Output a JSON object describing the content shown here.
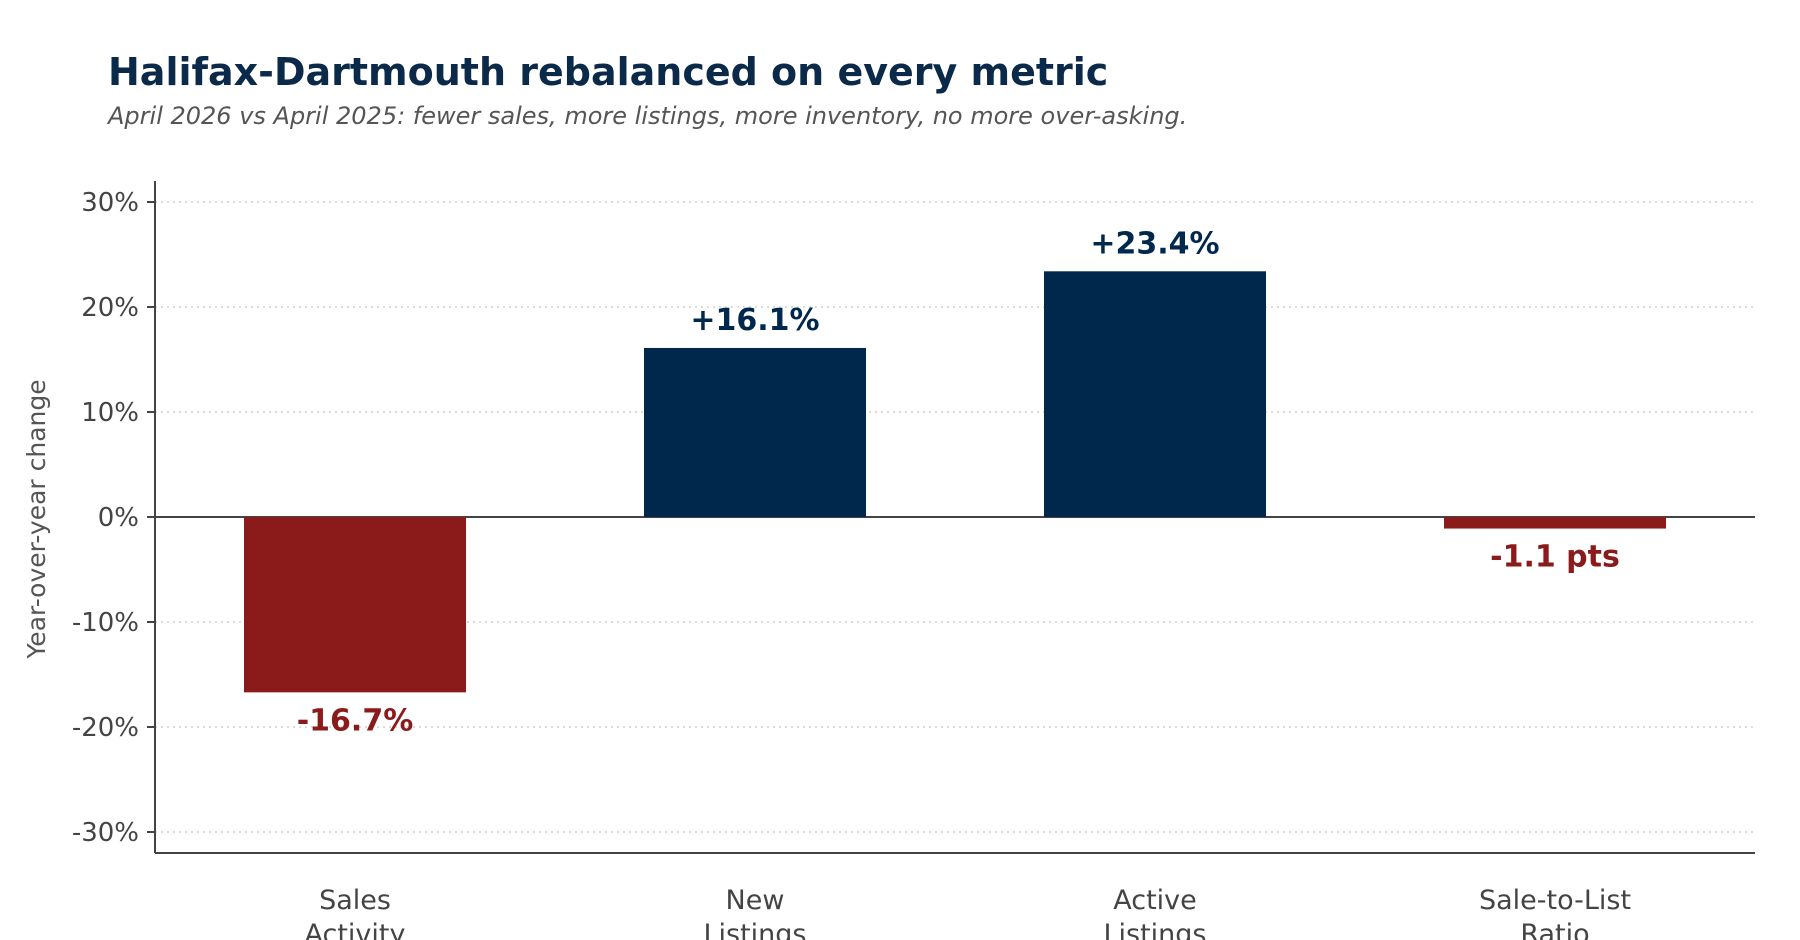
{
  "chart_data": {
    "type": "bar",
    "title": "Halifax-Dartmouth rebalanced on every metric",
    "subtitle": "April 2026 vs April 2025: fewer sales, more listings, more inventory, no more over-asking.",
    "ylabel": "Year-over-year change",
    "xlabel": "",
    "categories": [
      [
        "Sales",
        "Activity"
      ],
      [
        "New",
        "Listings"
      ],
      [
        "Active",
        "Listings"
      ],
      [
        "Sale-to-List",
        "Ratio"
      ]
    ],
    "values": [
      -16.7,
      16.1,
      23.4,
      -1.1
    ],
    "value_labels": [
      "-16.7%",
      "+16.1%",
      "+23.4%",
      "-1.1 pts"
    ],
    "ylim": [
      -32,
      32
    ],
    "yticks": [
      30,
      20,
      10,
      0,
      -10,
      -20,
      -30
    ],
    "ytick_labels": [
      "30%",
      "20%",
      "10%",
      "0%",
      "-10%",
      "-20%",
      "-30%"
    ],
    "grid": true,
    "legend": "none",
    "colors": {
      "positive": "#00274c",
      "negative": "#8b1a1a",
      "title": "#0b2a4a",
      "axis": "#444444",
      "grid": "#d0d0d0"
    }
  }
}
